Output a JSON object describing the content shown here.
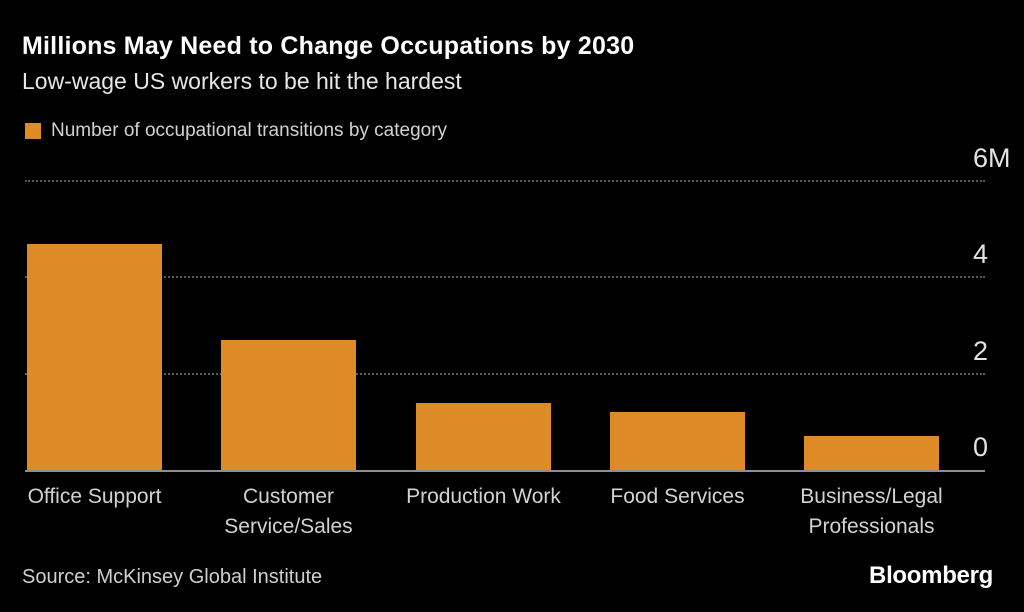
{
  "header": {
    "title": "Millions May Need to Change Occupations by 2030",
    "subtitle": "Low-wage US workers to be hit the hardest"
  },
  "legend": {
    "label": "Number of occupational transitions by category",
    "swatch_color": "#DD8B26"
  },
  "chart_data": {
    "type": "bar",
    "title": "Millions May Need to Change Occupations by 2030",
    "subtitle": "Low-wage US workers to be hit the hardest",
    "series_label": "Number of occupational transitions by category",
    "categories": [
      "Office Support",
      "Customer Service/Sales",
      "Production Work",
      "Food Services",
      "Business/Legal Professionals"
    ],
    "values": [
      4.7,
      2.7,
      1.4,
      1.2,
      0.7
    ],
    "unit": "millions of occupational transitions",
    "xlabel": "",
    "ylabel": "",
    "ylim": [
      0,
      6
    ],
    "yticks": [
      0,
      2,
      4,
      6
    ],
    "ytick_labels": [
      "0",
      "2",
      "4",
      "6M"
    ],
    "axis_side": "right",
    "grid": "horizontal-dotted",
    "legend_position": "top-left",
    "bar_color": "#DD8B26",
    "background_color": "#000000"
  },
  "footer": {
    "source": "Source: McKinsey Global Institute",
    "brand": "Bloomberg"
  }
}
